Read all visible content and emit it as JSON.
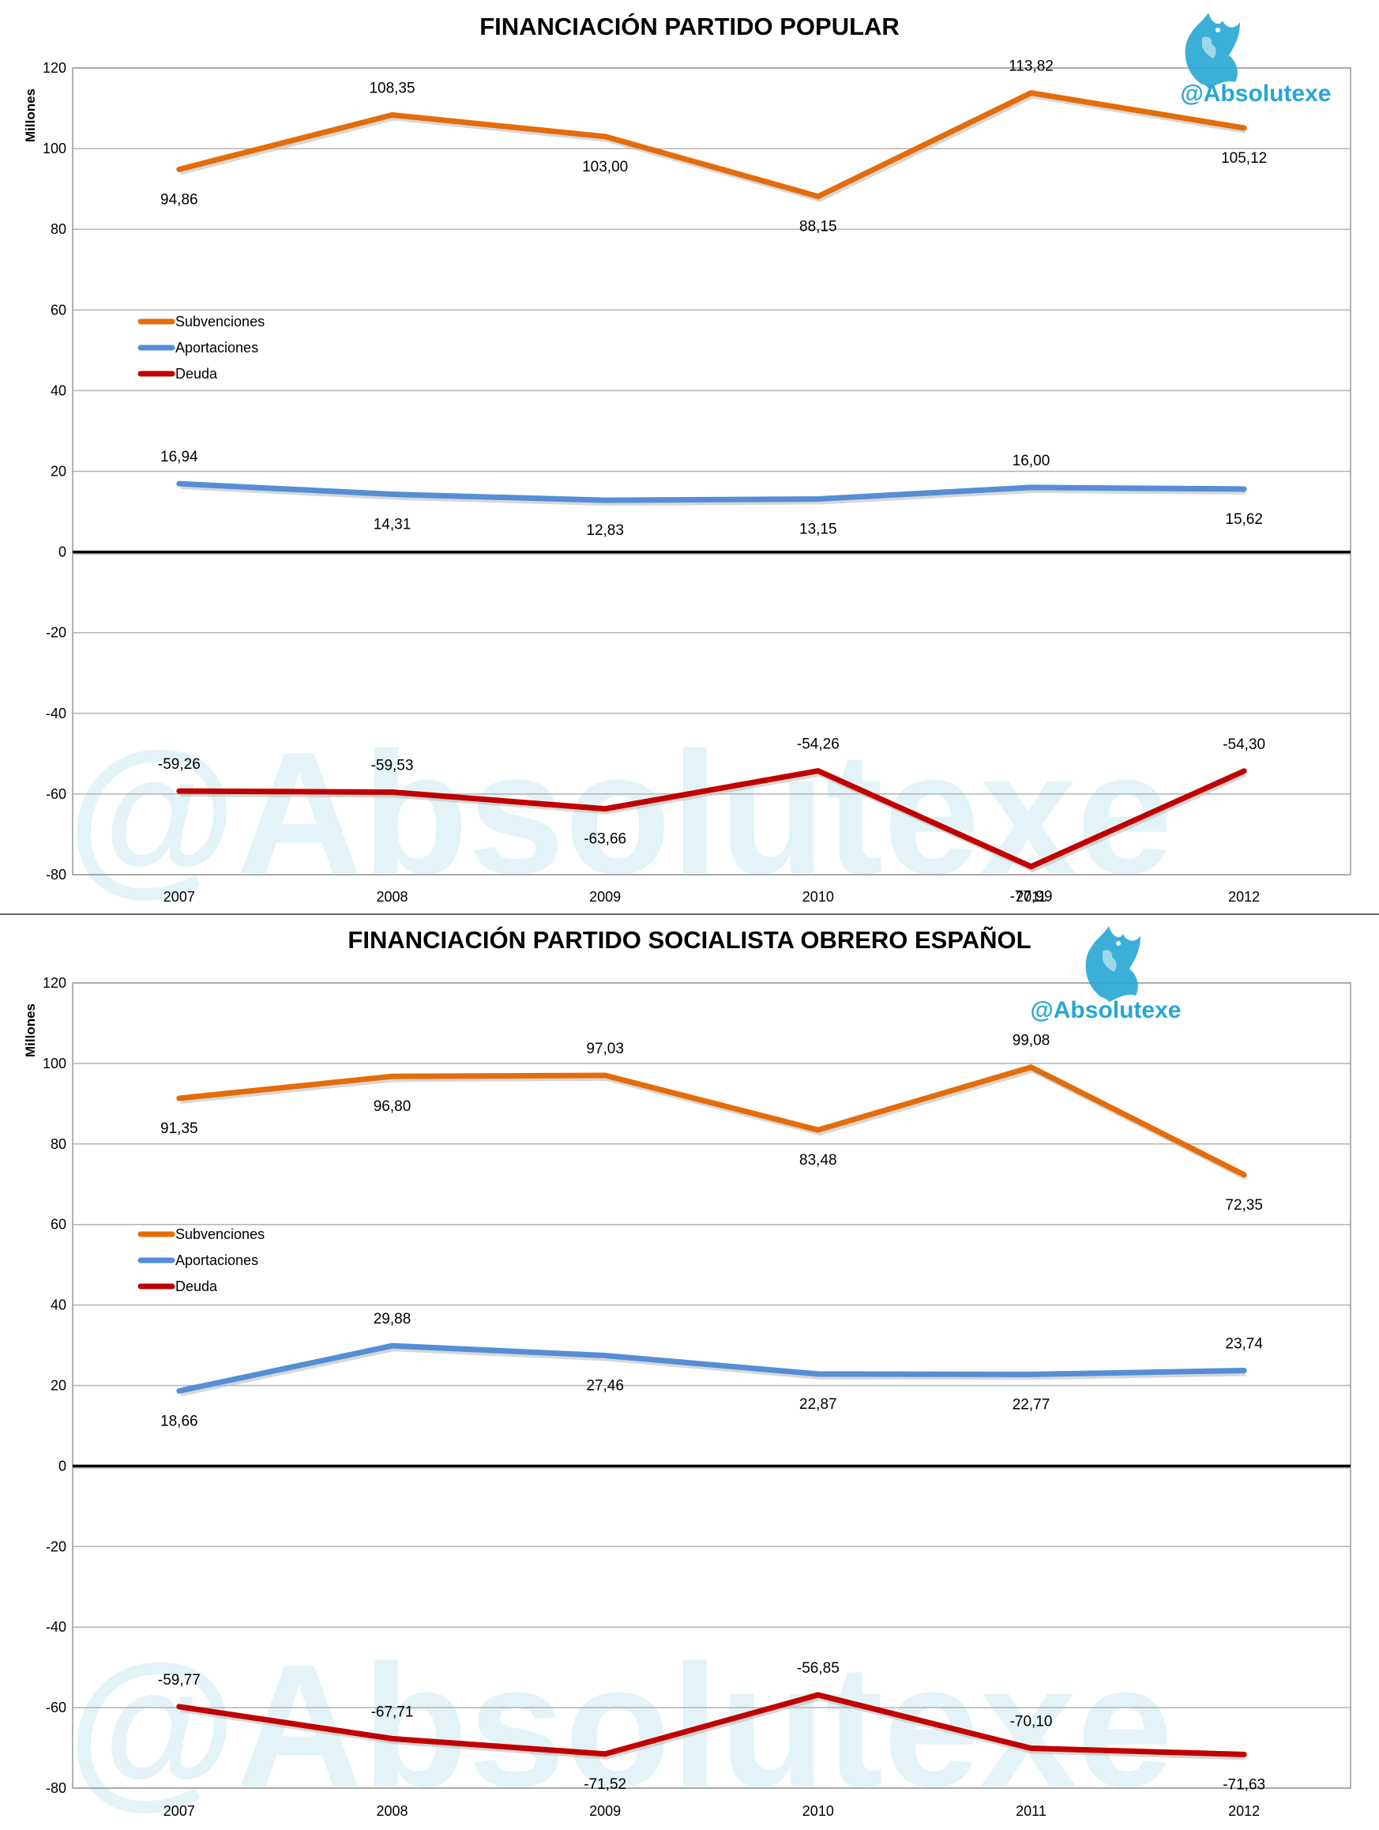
{
  "colors": {
    "subvenciones": "#e46c0a",
    "aportaciones": "#558ed5",
    "deuda": "#c00000",
    "logo": "#27a6d4",
    "watermark": "#e3f3f8",
    "grid": "#b3b3b3"
  },
  "icons": {
    "logo": "griffin-logo-icon"
  },
  "chart_data": [
    {
      "type": "line",
      "title": "FINANCIACIÓN PARTIDO POPULAR",
      "xlabel": "",
      "ylabel": "Millones",
      "ylim": [
        -80,
        120
      ],
      "yticks": [
        "120",
        "100",
        "80",
        "60",
        "40",
        "20",
        "0",
        "-20",
        "-40",
        "-60",
        "-80"
      ],
      "categories": [
        "2007",
        "2008",
        "2009",
        "2010",
        "2011",
        "2012"
      ],
      "grid": true,
      "legend_position": "left, above the middle",
      "logo_text": "@Absolutexe",
      "watermark_text": "@Absolutexe",
      "series": [
        {
          "name": "Subvenciones",
          "color": "#e46c0a",
          "values": [
            94.86,
            108.35,
            103.0,
            88.15,
            113.82,
            105.12
          ],
          "labels": [
            "94,86",
            "108,35",
            "103,00",
            "88,15",
            "113,82",
            "105,12"
          ]
        },
        {
          "name": "Aportaciones",
          "color": "#558ed5",
          "values": [
            16.94,
            14.31,
            12.83,
            13.15,
            16.0,
            15.62
          ],
          "labels": [
            "16,94",
            "14,31",
            "12,83",
            "13,15",
            "16,00",
            "15,62"
          ]
        },
        {
          "name": "Deuda",
          "color": "#c00000",
          "values": [
            -59.26,
            -59.53,
            -63.66,
            -54.26,
            -77.99,
            -54.3
          ],
          "labels": [
            "-59,26",
            "-59,53",
            "-63,66",
            "-54,26",
            "-77,99",
            "-54,30"
          ]
        }
      ]
    },
    {
      "type": "line",
      "title": "FINANCIACIÓN PARTIDO SOCIALISTA OBRERO ESPAÑOL",
      "xlabel": "",
      "ylabel": "Millones",
      "ylim": [
        -80,
        120
      ],
      "yticks": [
        "120",
        "100",
        "80",
        "60",
        "40",
        "20",
        "0",
        "-20",
        "-40",
        "-60",
        "-80"
      ],
      "categories": [
        "2007",
        "2008",
        "2009",
        "2010",
        "2011",
        "2012"
      ],
      "grid": true,
      "legend_position": "left, above the middle",
      "logo_text": "@Absolutexe",
      "watermark_text": "@Absolutexe",
      "series": [
        {
          "name": "Subvenciones",
          "color": "#e46c0a",
          "values": [
            91.35,
            96.8,
            97.03,
            83.48,
            99.08,
            72.35
          ],
          "labels": [
            "91,35",
            "96,80",
            "97,03",
            "83,48",
            "99,08",
            "72,35"
          ]
        },
        {
          "name": "Aportaciones",
          "color": "#558ed5",
          "values": [
            18.66,
            29.88,
            27.46,
            22.87,
            22.77,
            23.74
          ],
          "labels": [
            "18,66",
            "29,88",
            "27,46",
            "22,87",
            "22,77",
            "23,74"
          ]
        },
        {
          "name": "Deuda",
          "color": "#c00000",
          "values": [
            -59.77,
            -67.71,
            -71.52,
            -56.85,
            -70.1,
            -71.63
          ],
          "labels": [
            "-59,77",
            "-67,71",
            "-71,52",
            "-56,85",
            "-70,10",
            "-71,63"
          ]
        }
      ]
    }
  ]
}
